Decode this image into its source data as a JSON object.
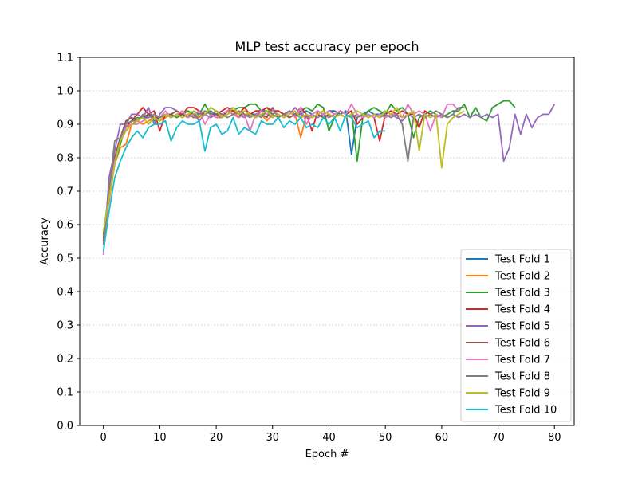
{
  "chart_data": {
    "type": "line",
    "title": "MLP test accuracy per epoch",
    "xlabel": "Epoch #",
    "ylabel": "Accuracy",
    "xlim": [
      -4.2,
      83.5
    ],
    "ylim": [
      0.0,
      1.1
    ],
    "xticks": [
      0,
      10,
      20,
      30,
      40,
      50,
      60,
      70,
      80
    ],
    "yticks": [
      0.0,
      0.1,
      0.2,
      0.3,
      0.4,
      0.5,
      0.6,
      0.7,
      0.8,
      0.9,
      1.0,
      1.1
    ],
    "grid": "horizontal dashed",
    "legend_position": "lower-right",
    "series": [
      {
        "name": "Test Fold 1",
        "color": "#1f77b4",
        "values": [
          0.55,
          0.7,
          0.8,
          0.86,
          0.88,
          0.9,
          0.91,
          0.92,
          0.92,
          0.93,
          0.92,
          0.93,
          0.92,
          0.93,
          0.93,
          0.92,
          0.94,
          0.93,
          0.93,
          0.94,
          0.93,
          0.93,
          0.94,
          0.93,
          0.94,
          0.93,
          0.93,
          0.93,
          0.94,
          0.94,
          0.93,
          0.94,
          0.93,
          0.94,
          0.93,
          0.93,
          0.94,
          0.93,
          0.94,
          0.93,
          0.94,
          0.94,
          0.93,
          0.94,
          0.81,
          0.92,
          0.93,
          0.94,
          0.93,
          0.93,
          0.94
        ]
      },
      {
        "name": "Test Fold 2",
        "color": "#ff7f0e",
        "values": [
          0.58,
          0.67,
          0.78,
          0.83,
          0.84,
          0.9,
          0.91,
          0.9,
          0.91,
          0.92,
          0.91,
          0.92,
          0.93,
          0.92,
          0.93,
          0.94,
          0.92,
          0.92,
          0.94,
          0.93,
          0.92,
          0.92,
          0.93,
          0.94,
          0.92,
          0.93,
          0.93,
          0.92,
          0.93,
          0.91,
          0.93,
          0.92,
          0.93,
          0.92,
          0.93,
          0.86,
          0.93,
          0.92,
          0.93,
          0.92,
          0.93,
          0.92,
          0.93,
          0.92,
          0.93,
          0.92,
          0.93,
          0.92,
          0.93,
          0.92,
          0.93,
          0.94,
          0.93,
          0.94
        ]
      },
      {
        "name": "Test Fold 3",
        "color": "#2ca02c",
        "values": [
          0.57,
          0.7,
          0.78,
          0.84,
          0.9,
          0.91,
          0.92,
          0.92,
          0.93,
          0.91,
          0.92,
          0.93,
          0.93,
          0.92,
          0.93,
          0.94,
          0.93,
          0.93,
          0.96,
          0.93,
          0.94,
          0.93,
          0.94,
          0.94,
          0.95,
          0.95,
          0.96,
          0.96,
          0.94,
          0.95,
          0.93,
          0.94,
          0.93,
          0.94,
          0.93,
          0.94,
          0.95,
          0.94,
          0.96,
          0.95,
          0.88,
          0.92,
          0.94,
          0.93,
          0.94,
          0.79,
          0.92,
          0.94,
          0.95,
          0.94,
          0.93,
          0.96,
          0.94,
          0.95,
          0.93,
          0.86,
          0.92,
          0.93,
          0.94,
          0.93,
          0.92,
          0.93,
          0.94,
          0.94,
          0.96,
          0.92,
          0.95,
          0.92,
          0.91,
          0.95,
          0.96,
          0.97,
          0.97,
          0.95
        ]
      },
      {
        "name": "Test Fold 4",
        "color": "#d62728",
        "values": [
          0.56,
          0.68,
          0.79,
          0.85,
          0.89,
          0.91,
          0.93,
          0.95,
          0.93,
          0.94,
          0.88,
          0.93,
          0.92,
          0.93,
          0.93,
          0.95,
          0.95,
          0.94,
          0.93,
          0.92,
          0.93,
          0.94,
          0.95,
          0.94,
          0.93,
          0.95,
          0.93,
          0.94,
          0.94,
          0.95,
          0.94,
          0.94,
          0.93,
          0.94,
          0.93,
          0.95,
          0.93,
          0.88,
          0.94,
          0.93,
          0.94,
          0.93,
          0.94,
          0.93,
          0.94,
          0.9,
          0.92,
          0.93,
          0.92,
          0.85,
          0.93,
          0.94,
          0.93,
          0.94,
          0.93,
          0.93,
          0.89,
          0.94,
          0.93,
          0.92,
          0.93,
          0.92
        ]
      },
      {
        "name": "Test Fold 5",
        "color": "#9467bd",
        "values": [
          0.51,
          0.74,
          0.82,
          0.9,
          0.9,
          0.93,
          0.93,
          0.92,
          0.95,
          0.9,
          0.93,
          0.95,
          0.95,
          0.94,
          0.93,
          0.92,
          0.93,
          0.91,
          0.93,
          0.92,
          0.93,
          0.92,
          0.94,
          0.95,
          0.93,
          0.92,
          0.93,
          0.92,
          0.94,
          0.93,
          0.92,
          0.93,
          0.92,
          0.93,
          0.95,
          0.93,
          0.92,
          0.93,
          0.92,
          0.93,
          0.92,
          0.93,
          0.94,
          0.93,
          0.92,
          0.93,
          0.92,
          0.93,
          0.92,
          0.93,
          0.92,
          0.93,
          0.92,
          0.91,
          0.93,
          0.92,
          0.93,
          0.92,
          0.93,
          0.92,
          0.93,
          0.92,
          0.93,
          0.92,
          0.93,
          0.92,
          0.93,
          0.92,
          0.93,
          0.92,
          0.93,
          0.79,
          0.83,
          0.93,
          0.87,
          0.93,
          0.89,
          0.92,
          0.93,
          0.93,
          0.96
        ]
      },
      {
        "name": "Test Fold 6",
        "color": "#8c564b",
        "values": [
          0.55,
          0.69,
          0.8,
          0.86,
          0.91,
          0.92,
          0.91,
          0.92,
          0.93,
          0.92,
          0.92,
          0.93,
          0.93,
          0.94,
          0.93,
          0.92,
          0.93,
          0.92,
          0.94,
          0.93,
          0.93,
          0.92,
          0.94,
          0.93,
          0.92,
          0.94,
          0.93,
          0.92,
          0.93,
          0.92,
          0.95,
          0.92,
          0.93,
          0.92,
          0.93,
          0.92,
          0.93,
          0.92,
          0.93,
          0.92,
          0.93,
          0.92,
          0.93,
          0.92,
          0.93,
          0.92,
          0.93,
          0.92
        ]
      },
      {
        "name": "Test Fold 7",
        "color": "#e377c2",
        "values": [
          0.51,
          0.69,
          0.79,
          0.85,
          0.89,
          0.9,
          0.9,
          0.91,
          0.92,
          0.93,
          0.92,
          0.94,
          0.92,
          0.93,
          0.94,
          0.92,
          0.93,
          0.94,
          0.9,
          0.93,
          0.92,
          0.93,
          0.94,
          0.93,
          0.92,
          0.93,
          0.88,
          0.93,
          0.94,
          0.93,
          0.94,
          0.93,
          0.92,
          0.94,
          0.92,
          0.95,
          0.9,
          0.93,
          0.94,
          0.93,
          0.94,
          0.93,
          0.94,
          0.93,
          0.96,
          0.93,
          0.92,
          0.93,
          0.92,
          0.93,
          0.92,
          0.93,
          0.93,
          0.92,
          0.96,
          0.93,
          0.94,
          0.93,
          0.88,
          0.93,
          0.92,
          0.96,
          0.96,
          0.94
        ]
      },
      {
        "name": "Test Fold 8",
        "color": "#7f7f7f",
        "values": [
          0.54,
          0.7,
          0.85,
          0.86,
          0.9,
          0.91,
          0.91,
          0.93,
          0.92,
          0.93,
          0.92,
          0.93,
          0.92,
          0.93,
          0.92,
          0.93,
          0.92,
          0.93,
          0.94,
          0.93,
          0.94,
          0.93,
          0.92,
          0.93,
          0.94,
          0.93,
          0.92,
          0.93,
          0.92,
          0.94,
          0.93,
          0.92,
          0.93,
          0.94,
          0.93,
          0.92,
          0.93,
          0.92,
          0.93,
          0.94,
          0.93,
          0.92,
          0.93,
          0.92,
          0.93,
          0.92,
          0.93,
          0.92,
          0.93,
          0.92,
          0.93,
          0.92,
          0.93,
          0.9,
          0.79,
          0.92,
          0.93,
          0.92,
          0.93,
          0.94,
          0.93,
          0.92,
          0.93,
          0.95,
          0.95
        ]
      },
      {
        "name": "Test Fold 9",
        "color": "#bcbd22",
        "values": [
          0.58,
          0.68,
          0.78,
          0.85,
          0.88,
          0.9,
          0.91,
          0.92,
          0.9,
          0.92,
          0.91,
          0.93,
          0.92,
          0.93,
          0.92,
          0.93,
          0.94,
          0.92,
          0.93,
          0.95,
          0.94,
          0.92,
          0.93,
          0.95,
          0.93,
          0.94,
          0.93,
          0.92,
          0.93,
          0.94,
          0.92,
          0.93,
          0.92,
          0.93,
          0.94,
          0.92,
          0.93,
          0.92,
          0.93,
          0.94,
          0.93,
          0.92,
          0.93,
          0.92,
          0.93,
          0.94,
          0.93,
          0.92,
          0.93,
          0.92,
          0.94,
          0.93,
          0.95,
          0.92,
          0.93,
          0.94,
          0.82,
          0.93,
          0.92,
          0.93,
          0.77,
          0.9,
          0.92,
          0.93,
          0.94
        ]
      },
      {
        "name": "Test Fold 10",
        "color": "#17becf",
        "values": [
          0.52,
          0.64,
          0.74,
          0.79,
          0.83,
          0.86,
          0.88,
          0.86,
          0.89,
          0.9,
          0.9,
          0.91,
          0.85,
          0.89,
          0.91,
          0.9,
          0.9,
          0.91,
          0.82,
          0.89,
          0.9,
          0.87,
          0.88,
          0.92,
          0.87,
          0.89,
          0.88,
          0.87,
          0.91,
          0.9,
          0.9,
          0.92,
          0.89,
          0.91,
          0.9,
          0.92,
          0.89,
          0.9,
          0.89,
          0.92,
          0.9,
          0.92,
          0.88,
          0.93,
          0.92,
          0.89,
          0.9,
          0.91,
          0.86,
          0.88,
          0.88
        ]
      }
    ]
  }
}
